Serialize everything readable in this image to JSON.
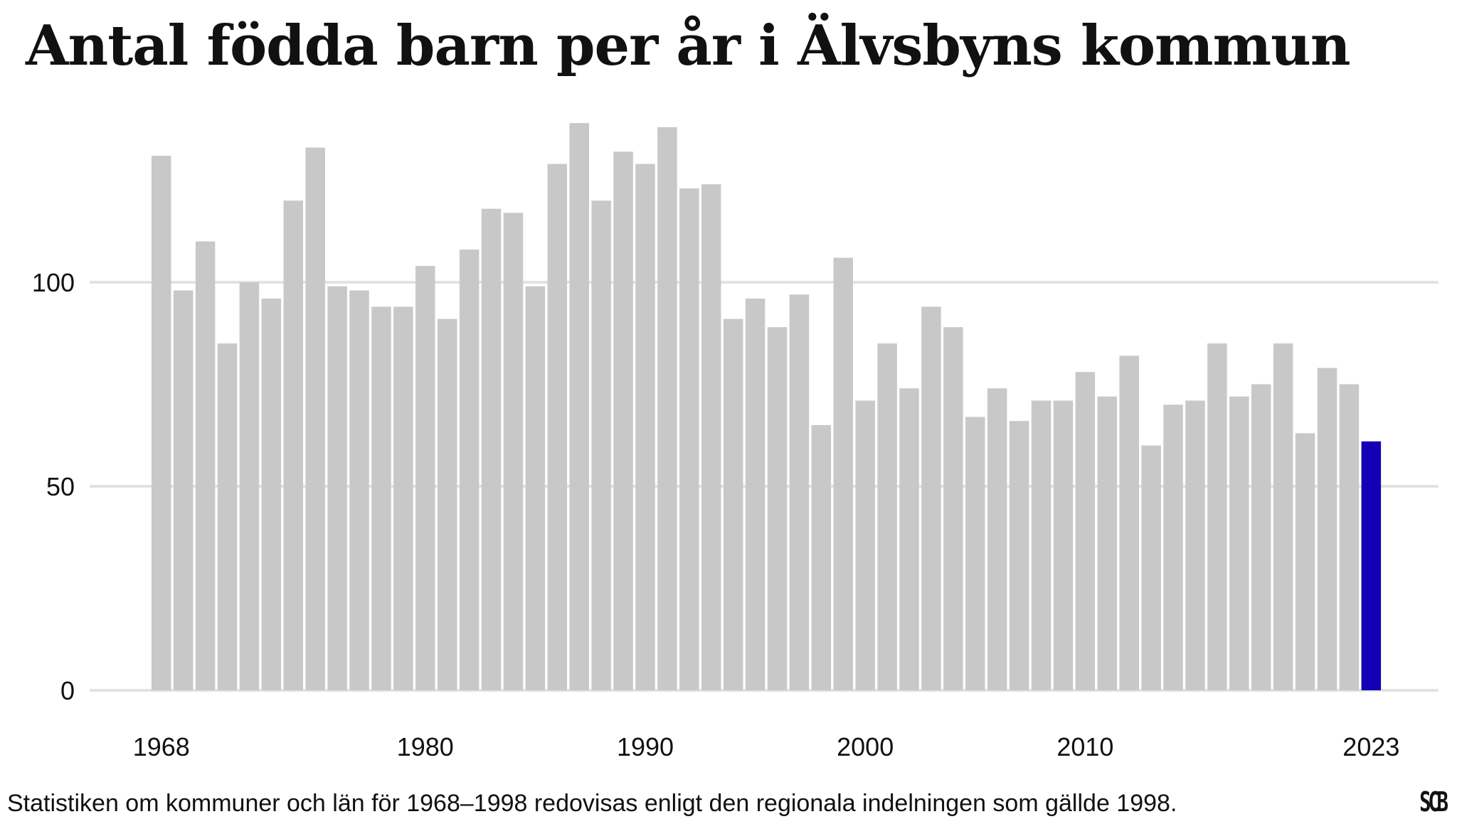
{
  "title": "Antal födda barn per år i Älvsbyns kommun",
  "footnote": "Statistiken om kommuner och län för 1968–1998 redovisas enligt den regionala indelningen som gällde 1998.",
  "logo_text": "SCB",
  "colors": {
    "bar": "#c8c8c8",
    "highlight_bar": "#1400b4",
    "grid": "#e2e2e2",
    "text": "#111111"
  },
  "chart_data": {
    "type": "bar",
    "x": [
      1968,
      1969,
      1970,
      1971,
      1972,
      1973,
      1974,
      1975,
      1976,
      1977,
      1978,
      1979,
      1980,
      1981,
      1982,
      1983,
      1984,
      1985,
      1986,
      1987,
      1988,
      1989,
      1990,
      1991,
      1992,
      1993,
      1994,
      1995,
      1996,
      1997,
      1998,
      1999,
      2000,
      2001,
      2002,
      2003,
      2004,
      2005,
      2006,
      2007,
      2008,
      2009,
      2010,
      2011,
      2012,
      2013,
      2014,
      2015,
      2016,
      2017,
      2018,
      2019,
      2020,
      2021,
      2022,
      2023
    ],
    "values": [
      131,
      98,
      110,
      85,
      100,
      96,
      120,
      133,
      99,
      98,
      94,
      94,
      104,
      91,
      108,
      118,
      117,
      99,
      129,
      139,
      120,
      132,
      129,
      138,
      123,
      124,
      91,
      96,
      89,
      97,
      65,
      106,
      71,
      85,
      74,
      94,
      89,
      67,
      74,
      66,
      71,
      71,
      78,
      72,
      82,
      60,
      70,
      71,
      85,
      72,
      75,
      85,
      63,
      79,
      75,
      61
    ],
    "highlight": 2023,
    "yticks": [
      0,
      50,
      100
    ],
    "ylim": [
      0,
      140
    ],
    "xtick_labels": [
      "1968",
      "1980",
      "1990",
      "2000",
      "2010",
      "2023"
    ],
    "grid": true,
    "legend": "none"
  }
}
